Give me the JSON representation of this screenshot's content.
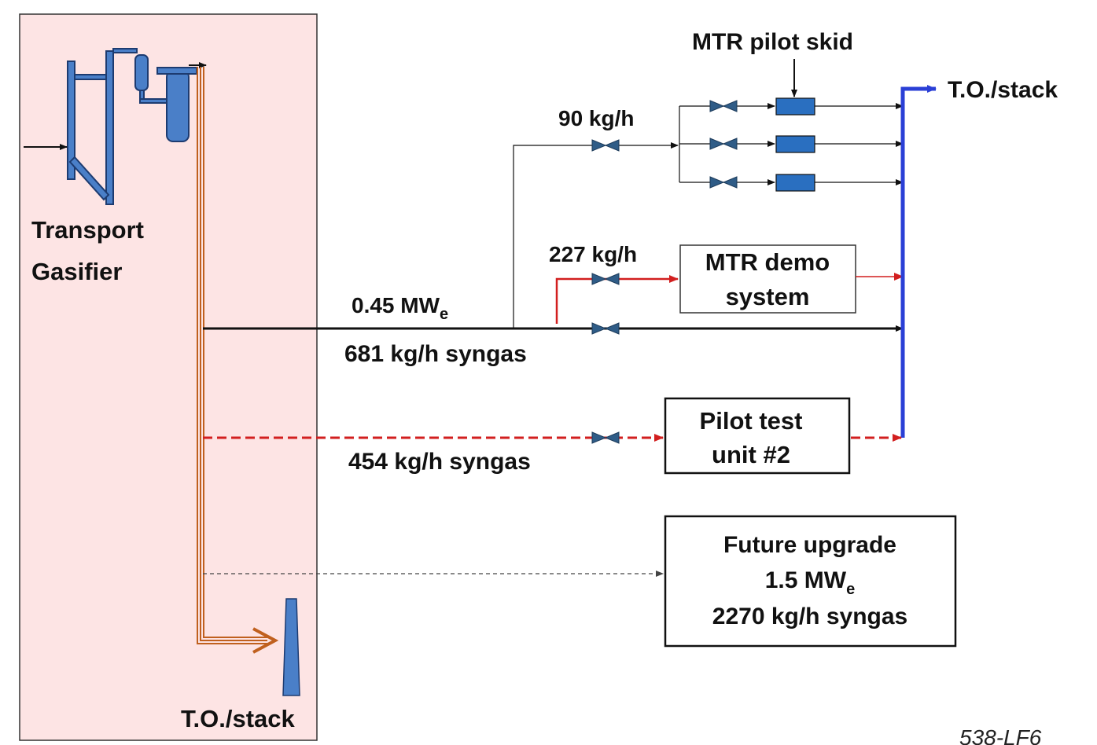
{
  "gasifier": {
    "label_lines": [
      "Transport",
      "Gasifier"
    ],
    "stack_label": "T.O./stack"
  },
  "main_line": {
    "power": {
      "value": "0.45 MW",
      "subscript": "e"
    },
    "flow": "681 kg/h syngas"
  },
  "skid_branch": {
    "flow": "90 kg/h",
    "label": "MTR pilot skid"
  },
  "demo_branch": {
    "flow": "227 kg/h",
    "box_lines": [
      "MTR demo",
      "system"
    ]
  },
  "outlet_label": "T.O./stack",
  "pilot_test": {
    "flow": "454 kg/h syngas",
    "box_lines": [
      "Pilot test",
      "unit #2"
    ]
  },
  "future": {
    "title": "Future upgrade",
    "power": {
      "value": "1.5 MW",
      "subscript": "e"
    },
    "flow": "2270 kg/h syngas"
  },
  "figure_id": "538-LF6"
}
